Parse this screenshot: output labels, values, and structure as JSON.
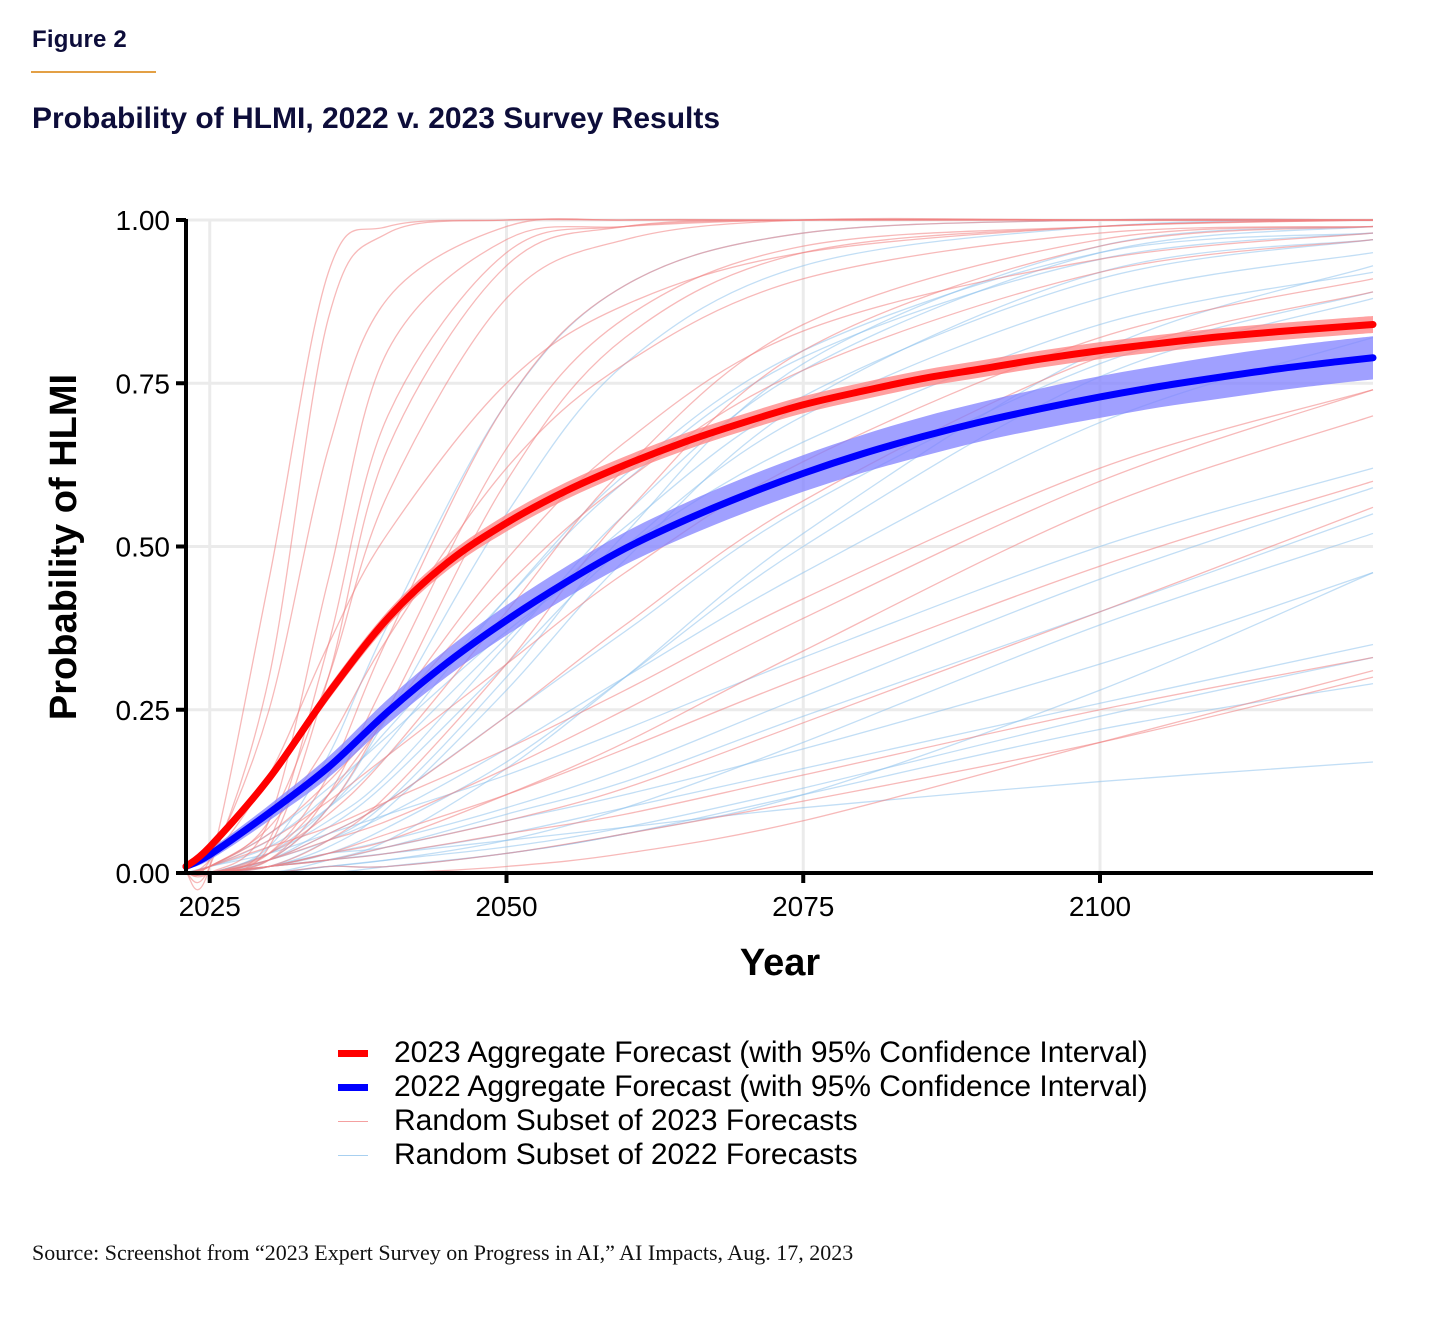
{
  "figure": {
    "label": "Figure 2",
    "title": "Probability of HLMI, 2022 v. 2023 Survey Results",
    "source": "Source: Screenshot from “2023 Expert Survey on Progress in AI,” AI Impacts, Aug. 17, 2023"
  },
  "colors": {
    "accent_rule": "#e3a045",
    "forecast_2023": "#ff0000",
    "forecast_2023_band": "#ff8080",
    "forecast_2022": "#0000ff",
    "forecast_2022_band": "#8080ff",
    "individual_2023": "#f08080",
    "individual_2022": "#8fc3ec",
    "grid": "#ebebeb"
  },
  "chart_data": {
    "type": "line",
    "title": "Probability of HLMI, 2022 v. 2023 Survey Results",
    "xlabel": "Year",
    "ylabel": "Probability of HLMI",
    "xlim": [
      2023,
      2123
    ],
    "ylim": [
      0,
      1
    ],
    "xticks": [
      2025,
      2050,
      2075,
      2100
    ],
    "xtick_labels": [
      "2025",
      "2050",
      "2075",
      "2100"
    ],
    "yticks": [
      0,
      0.25,
      0.5,
      0.75,
      1.0
    ],
    "ytick_labels": [
      "0.00",
      "0.25",
      "0.50",
      "0.75",
      "1.00"
    ],
    "grid": true,
    "legend_position": "bottom",
    "x": [
      2023,
      2025,
      2030,
      2035,
      2040,
      2045,
      2050,
      2055,
      2060,
      2065,
      2070,
      2075,
      2080,
      2085,
      2090,
      2095,
      2100,
      2105,
      2110,
      2115,
      2120,
      2123
    ],
    "series": [
      {
        "name": "2023 Aggregate Forecast (with 95% Confidence Interval)",
        "kind": "aggregate",
        "year_group": "2023",
        "values": [
          0.01,
          0.04,
          0.145,
          0.275,
          0.39,
          0.475,
          0.536,
          0.585,
          0.625,
          0.66,
          0.69,
          0.717,
          0.738,
          0.757,
          0.772,
          0.787,
          0.8,
          0.811,
          0.821,
          0.829,
          0.836,
          0.84
        ],
        "ci_halfwidth": [
          0.004,
          0.006,
          0.008,
          0.01,
          0.011,
          0.012,
          0.013,
          0.013,
          0.013,
          0.013,
          0.013,
          0.013,
          0.013,
          0.013,
          0.013,
          0.013,
          0.013,
          0.013,
          0.013,
          0.013,
          0.013,
          0.013
        ]
      },
      {
        "name": "2022 Aggregate Forecast (with 95% Confidence Interval)",
        "kind": "aggregate",
        "year_group": "2022",
        "values": [
          0.01,
          0.028,
          0.092,
          0.162,
          0.247,
          0.322,
          0.387,
          0.445,
          0.497,
          0.54,
          0.578,
          0.612,
          0.642,
          0.668,
          0.691,
          0.711,
          0.729,
          0.745,
          0.759,
          0.772,
          0.783,
          0.789
        ],
        "ci_halfwidth": [
          0.004,
          0.008,
          0.012,
          0.016,
          0.019,
          0.021,
          0.023,
          0.024,
          0.025,
          0.026,
          0.027,
          0.028,
          0.029,
          0.03,
          0.03,
          0.031,
          0.032,
          0.032,
          0.033,
          0.033,
          0.033,
          0.033
        ]
      }
    ],
    "individual_forecasts": {
      "legend": [
        {
          "name": "Random Subset of 2023 Forecasts",
          "year_group": "2023"
        },
        {
          "name": "Random Subset of 2022 Forecasts",
          "year_group": "2022"
        }
      ],
      "x": [
        2023,
        2025,
        2030,
        2035,
        2040,
        2050,
        2060,
        2075,
        2100,
        2123
      ],
      "lines_2023": [
        [
          0,
          0.01,
          0.45,
          0.92,
          0.99,
          1,
          1,
          1,
          1,
          1
        ],
        [
          0,
          0.01,
          0.3,
          0.85,
          0.98,
          1,
          1,
          1,
          1,
          1
        ],
        [
          0,
          0.02,
          0.25,
          0.65,
          0.88,
          0.99,
          1,
          1,
          1,
          1
        ],
        [
          0,
          0.0,
          0.08,
          0.45,
          0.8,
          0.97,
          0.99,
          1,
          1,
          1
        ],
        [
          0,
          0.0,
          0.05,
          0.35,
          0.7,
          0.95,
          0.99,
          1,
          1,
          1
        ],
        [
          0,
          0.0,
          0.04,
          0.3,
          0.65,
          0.93,
          0.99,
          1,
          1,
          1
        ],
        [
          0,
          0.02,
          0.15,
          0.35,
          0.52,
          0.75,
          0.87,
          0.95,
          0.99,
          1
        ],
        [
          0,
          0.0,
          0.03,
          0.15,
          0.36,
          0.72,
          0.9,
          0.98,
          1,
          1
        ],
        [
          0,
          0.0,
          0.02,
          0.1,
          0.25,
          0.6,
          0.82,
          0.95,
          0.99,
          1
        ],
        [
          0,
          0.01,
          0.06,
          0.14,
          0.24,
          0.44,
          0.6,
          0.77,
          0.92,
          0.97
        ],
        [
          0,
          0.0,
          0.03,
          0.09,
          0.18,
          0.4,
          0.62,
          0.84,
          0.97,
          0.99
        ],
        [
          0,
          0.01,
          0.05,
          0.11,
          0.18,
          0.32,
          0.46,
          0.63,
          0.82,
          0.91
        ],
        [
          0,
          0.0,
          0.01,
          0.05,
          0.12,
          0.32,
          0.55,
          0.8,
          0.96,
          0.99
        ],
        [
          0,
          0.0,
          0.02,
          0.06,
          0.11,
          0.24,
          0.38,
          0.57,
          0.79,
          0.89
        ],
        [
          0,
          0.01,
          0.04,
          0.07,
          0.11,
          0.19,
          0.28,
          0.42,
          0.62,
          0.74
        ],
        [
          0,
          0.0,
          0.02,
          0.05,
          0.08,
          0.16,
          0.25,
          0.39,
          0.6,
          0.74
        ],
        [
          0,
          0.0,
          0.01,
          0.03,
          0.05,
          0.12,
          0.2,
          0.34,
          0.56,
          0.7
        ],
        [
          0,
          0.0,
          0.01,
          0.03,
          0.06,
          0.12,
          0.19,
          0.3,
          0.47,
          0.6
        ],
        [
          0,
          0.0,
          0.01,
          0.02,
          0.04,
          0.08,
          0.13,
          0.23,
          0.4,
          0.56
        ],
        [
          0,
          0.0,
          0.01,
          0.02,
          0.03,
          0.06,
          0.09,
          0.15,
          0.25,
          0.33
        ],
        [
          0,
          0.0,
          0.0,
          0.01,
          0.01,
          0.03,
          0.06,
          0.11,
          0.2,
          0.3
        ],
        [
          0,
          0.0,
          0.0,
          0.0,
          0.0,
          0.01,
          0.03,
          0.08,
          0.2,
          0.31
        ],
        [
          0,
          0.01,
          0.08,
          0.3,
          0.58,
          0.88,
          0.97,
          1,
          1,
          1
        ],
        [
          0,
          0.0,
          0.02,
          0.12,
          0.3,
          0.65,
          0.85,
          0.96,
          0.99,
          1
        ],
        [
          0,
          0.0,
          0.03,
          0.12,
          0.24,
          0.48,
          0.66,
          0.83,
          0.94,
          0.98
        ],
        [
          0,
          0.01,
          0.07,
          0.2,
          0.36,
          0.62,
          0.78,
          0.91,
          0.98,
          0.99
        ]
      ],
      "lines_2022": [
        [
          0,
          0.0,
          0.04,
          0.18,
          0.38,
          0.72,
          0.9,
          0.98,
          1,
          1
        ],
        [
          0,
          0.0,
          0.02,
          0.1,
          0.24,
          0.55,
          0.78,
          0.93,
          0.99,
          1
        ],
        [
          0,
          0.01,
          0.05,
          0.12,
          0.22,
          0.42,
          0.6,
          0.79,
          0.94,
          0.98
        ],
        [
          0,
          0.0,
          0.03,
          0.08,
          0.15,
          0.35,
          0.55,
          0.77,
          0.95,
          0.99
        ],
        [
          0,
          0.01,
          0.06,
          0.13,
          0.21,
          0.37,
          0.5,
          0.66,
          0.84,
          0.92
        ],
        [
          0,
          0.0,
          0.01,
          0.05,
          0.11,
          0.3,
          0.52,
          0.78,
          0.96,
          0.99
        ],
        [
          0,
          0.0,
          0.02,
          0.06,
          0.11,
          0.24,
          0.37,
          0.56,
          0.78,
          0.89
        ],
        [
          0,
          0.0,
          0.02,
          0.05,
          0.09,
          0.19,
          0.3,
          0.46,
          0.69,
          0.82
        ],
        [
          0,
          0.0,
          0.01,
          0.03,
          0.07,
          0.17,
          0.3,
          0.5,
          0.76,
          0.88
        ],
        [
          0,
          0.01,
          0.03,
          0.06,
          0.09,
          0.15,
          0.22,
          0.33,
          0.5,
          0.62
        ],
        [
          0,
          0.0,
          0.01,
          0.03,
          0.05,
          0.1,
          0.16,
          0.27,
          0.45,
          0.59
        ],
        [
          0,
          0.0,
          0.01,
          0.02,
          0.04,
          0.09,
          0.14,
          0.24,
          0.4,
          0.55
        ],
        [
          0,
          0.0,
          0.0,
          0.01,
          0.02,
          0.05,
          0.1,
          0.2,
          0.38,
          0.52
        ],
        [
          0,
          0.0,
          0.01,
          0.03,
          0.04,
          0.08,
          0.12,
          0.19,
          0.32,
          0.46
        ],
        [
          0,
          0.0,
          0.01,
          0.02,
          0.03,
          0.06,
          0.1,
          0.16,
          0.26,
          0.35
        ],
        [
          0,
          0.0,
          0.0,
          0.01,
          0.02,
          0.04,
          0.07,
          0.13,
          0.24,
          0.33
        ],
        [
          0,
          0.0,
          0.0,
          0.01,
          0.01,
          0.03,
          0.06,
          0.12,
          0.22,
          0.29
        ],
        [
          0,
          0.0,
          0.01,
          0.02,
          0.03,
          0.05,
          0.07,
          0.1,
          0.14,
          0.17
        ],
        [
          0,
          0.0,
          0.0,
          0.0,
          0.01,
          0.03,
          0.06,
          0.12,
          0.28,
          0.46
        ],
        [
          0,
          0.0,
          0.01,
          0.04,
          0.1,
          0.28,
          0.48,
          0.72,
          0.92,
          0.97
        ],
        [
          0,
          0.01,
          0.04,
          0.1,
          0.18,
          0.36,
          0.53,
          0.73,
          0.91,
          0.97
        ],
        [
          0,
          0.0,
          0.02,
          0.07,
          0.14,
          0.32,
          0.5,
          0.7,
          0.88,
          0.95
        ],
        [
          0,
          0.0,
          0.03,
          0.1,
          0.2,
          0.42,
          0.61,
          0.8,
          0.95,
          0.98
        ],
        [
          0,
          0.0,
          0.0,
          0.02,
          0.05,
          0.16,
          0.3,
          0.52,
          0.8,
          0.93
        ]
      ]
    }
  },
  "legend": {
    "items": [
      {
        "label": "2023 Aggregate Forecast (with 95% Confidence Interval)",
        "style": "thick-red"
      },
      {
        "label": "2022 Aggregate Forecast (with 95% Confidence Interval)",
        "style": "thick-blue"
      },
      {
        "label": "Random Subset of 2023 Forecasts",
        "style": "thin-red"
      },
      {
        "label": "Random Subset of 2022 Forecasts",
        "style": "thin-blue"
      }
    ]
  }
}
